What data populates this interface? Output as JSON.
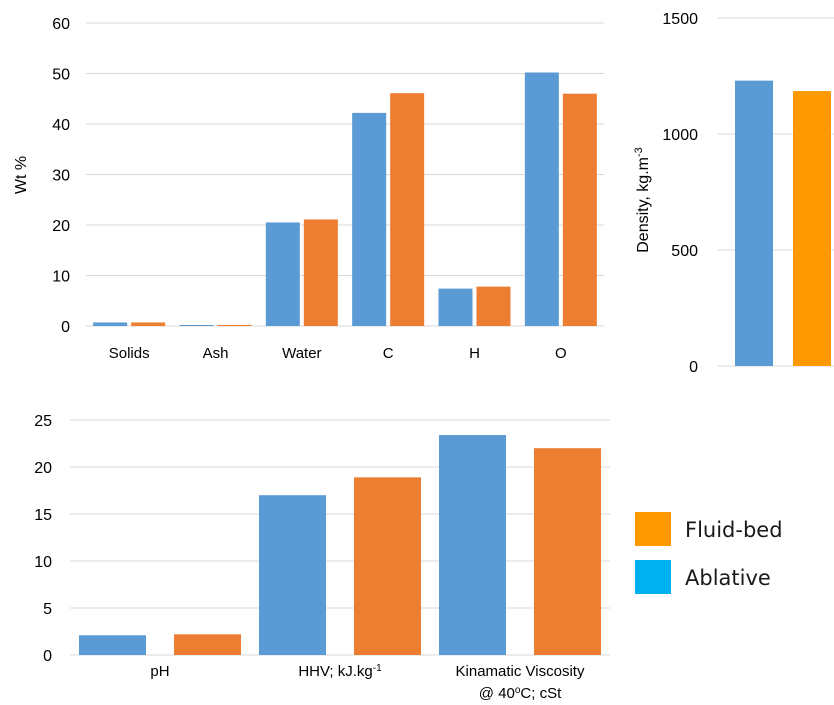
{
  "colors": {
    "ablative": "#5b9bd5",
    "fluid": "#ed7d31",
    "density_fluid": "#ff9900",
    "legend_fluid": "#ff9900",
    "legend_ablative": "#00b0f0",
    "grid": "#d9d9d9"
  },
  "legend": {
    "fluid_label": "Fluid-bed",
    "ablative_label": "Ablative"
  },
  "chart_data": [
    {
      "id": "composition",
      "type": "bar",
      "ylabel": "Wt %",
      "ylim": [
        0,
        60
      ],
      "yticks": [
        0,
        10,
        20,
        30,
        40,
        50,
        60
      ],
      "grid": true,
      "categories": [
        "Solids",
        "Ash",
        "Water",
        "C",
        "H",
        "O"
      ],
      "series": [
        {
          "key": "ablative",
          "values": [
            0.7,
            0.2,
            20.5,
            42.2,
            7.4,
            50.2
          ]
        },
        {
          "key": "fluid",
          "values": [
            0.7,
            0.2,
            21.1,
            46.1,
            7.8,
            46.0
          ]
        }
      ]
    },
    {
      "id": "density",
      "type": "bar",
      "ylabel_main": "Density, kg.m",
      "ylabel_sup": "-3",
      "ylim": [
        0,
        1500
      ],
      "yticks": [
        0,
        500,
        1000,
        1500
      ],
      "grid": true,
      "categories": [
        ""
      ],
      "series": [
        {
          "key": "ablative",
          "values": [
            1230
          ]
        },
        {
          "key": "density_fluid",
          "values": [
            1185
          ]
        }
      ]
    },
    {
      "id": "properties",
      "type": "bar",
      "ylim": [
        0,
        25
      ],
      "yticks": [
        0,
        5,
        10,
        15,
        20,
        25
      ],
      "grid": true,
      "categories": [
        {
          "lines": [
            {
              "t": "pH"
            }
          ]
        },
        {
          "lines": [
            {
              "t": "HHV; kJ.kg",
              "sup": "-1"
            }
          ]
        },
        {
          "lines": [
            {
              "t": "Kinamatic Viscosity"
            },
            {
              "t": "@ 40",
              "sup": "o",
              "t2": "C; cSt"
            }
          ]
        }
      ],
      "series": [
        {
          "key": "ablative",
          "values": [
            2.1,
            17.0,
            23.4
          ]
        },
        {
          "key": "fluid",
          "values": [
            2.2,
            18.9,
            22.0
          ]
        }
      ]
    }
  ]
}
